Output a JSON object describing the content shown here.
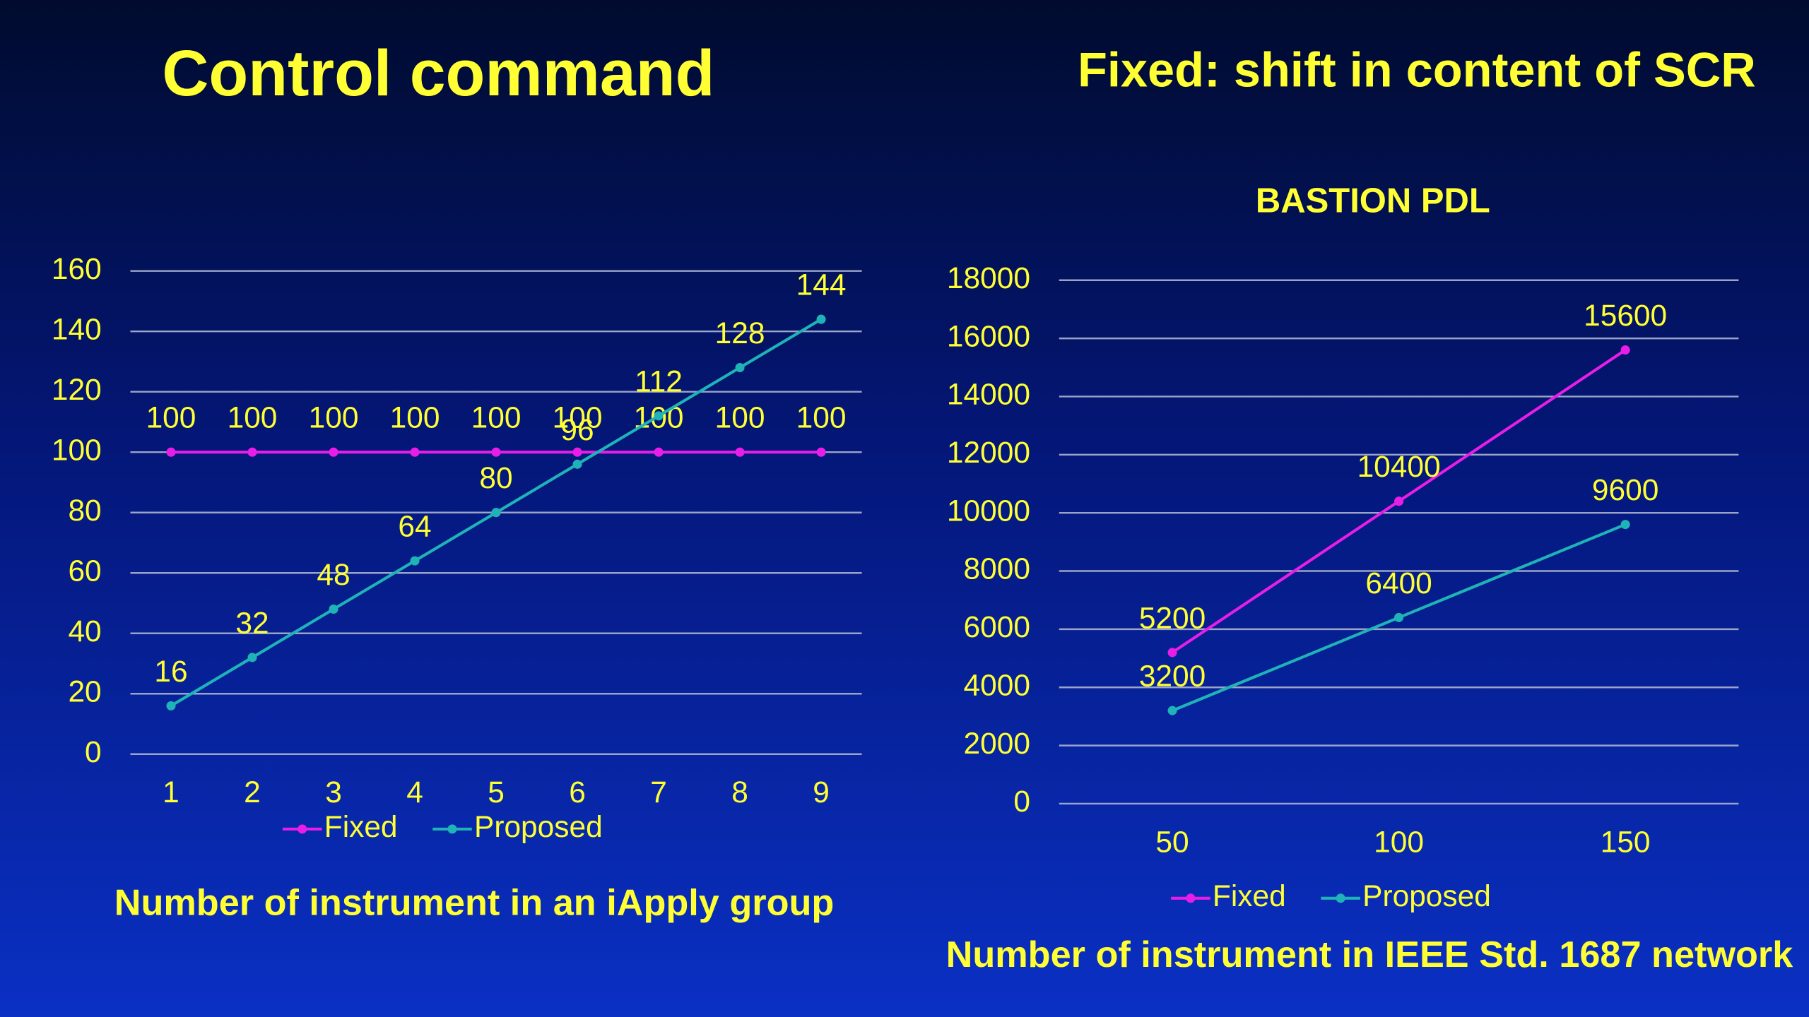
{
  "chart_data": [
    {
      "type": "line",
      "title": "Control command",
      "x_label": "Number of instrument in an iApply group",
      "categories": [
        "1",
        "2",
        "3",
        "4",
        "5",
        "6",
        "7",
        "8",
        "9"
      ],
      "series": [
        {
          "name": "Fixed",
          "color": "#e81ee8",
          "values": [
            100,
            100,
            100,
            100,
            100,
            100,
            100,
            100,
            100
          ]
        },
        {
          "name": "Proposed",
          "color": "#1fb3b8",
          "values": [
            16,
            32,
            48,
            64,
            80,
            96,
            112,
            128,
            144
          ]
        }
      ],
      "ylim": [
        0,
        160
      ],
      "yticks": [
        0,
        20,
        40,
        60,
        80,
        100,
        120,
        140,
        160
      ],
      "grid": true,
      "legend": "bottom",
      "data_labels": true
    },
    {
      "type": "line",
      "title": "Fixed: shift in content of SCR",
      "subtitle": "BASTION PDL",
      "x_label": "Number of instrument in IEEE Std. 1687 network",
      "categories": [
        "50",
        "100",
        "150"
      ],
      "series": [
        {
          "name": "Fixed",
          "color": "#e81ee8",
          "values": [
            5200,
            10400,
            15600
          ]
        },
        {
          "name": "Proposed",
          "color": "#1fb3b8",
          "values": [
            3200,
            6400,
            9600
          ]
        }
      ],
      "ylim": [
        0,
        18000
      ],
      "yticks": [
        0,
        2000,
        4000,
        6000,
        8000,
        10000,
        12000,
        14000,
        16000,
        18000
      ],
      "grid": true,
      "legend": "bottom",
      "data_labels": true
    }
  ]
}
